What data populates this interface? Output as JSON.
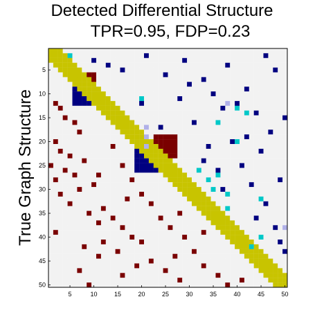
{
  "chart_data": {
    "type": "heatmap",
    "title": "Detected Differential Structure",
    "subtitle": "TPR=0.95, FDP=0.23",
    "xlabel": "",
    "ylabel": "True Graph Structure",
    "n": 50,
    "x_ticks": [
      "5",
      "10",
      "15",
      "20",
      "25",
      "30",
      "35",
      "40",
      "45",
      "50"
    ],
    "y_ticks": [
      "5",
      "10",
      "15",
      "20",
      "25",
      "30",
      "35",
      "40",
      "45",
      "50"
    ],
    "colors": {
      "background": "#f2f2f2",
      "diagonal_band": "#c8c400",
      "true_structure": "#7a0000",
      "detected_true": "#000080",
      "detected_false": "#00c8c8",
      "detected_weak": "#b0b0e8"
    },
    "diagonal_band_halfwidth": 2,
    "true_blocks": [
      [
        6,
        7,
        8,
        10
      ],
      [
        19,
        23,
        23,
        27
      ]
    ],
    "detected_blocks": [
      [
        8,
        12,
        6,
        9
      ],
      [
        22,
        26,
        19,
        23
      ]
    ],
    "true_cells": [
      [
        12,
        2
      ],
      [
        13,
        3
      ],
      [
        15,
        4
      ],
      [
        16,
        6
      ],
      [
        18,
        7
      ],
      [
        20,
        2
      ],
      [
        22,
        3
      ],
      [
        23,
        5
      ],
      [
        24,
        8
      ],
      [
        25,
        1
      ],
      [
        26,
        4
      ],
      [
        27,
        6
      ],
      [
        28,
        2
      ],
      [
        29,
        10
      ],
      [
        30,
        7
      ],
      [
        31,
        3
      ],
      [
        33,
        5
      ],
      [
        34,
        12
      ],
      [
        35,
        9
      ],
      [
        36,
        14
      ],
      [
        37,
        11
      ],
      [
        38,
        16
      ],
      [
        39,
        2
      ],
      [
        40,
        18
      ],
      [
        41,
        20
      ],
      [
        42,
        8
      ],
      [
        43,
        15
      ],
      [
        44,
        11
      ],
      [
        45,
        22
      ],
      [
        46,
        19
      ],
      [
        47,
        25
      ],
      [
        48,
        16
      ],
      [
        49,
        28
      ],
      [
        50,
        9
      ],
      [
        21,
        14
      ],
      [
        25,
        16
      ],
      [
        28,
        18
      ],
      [
        31,
        20
      ],
      [
        33,
        22
      ],
      [
        36,
        24
      ],
      [
        38,
        26
      ],
      [
        40,
        29
      ],
      [
        43,
        31
      ],
      [
        46,
        33
      ],
      [
        48,
        36
      ],
      [
        50,
        38
      ],
      [
        27,
        11
      ],
      [
        32,
        17
      ],
      [
        41,
        12
      ],
      [
        44,
        27
      ],
      [
        49,
        41
      ],
      [
        35,
        28
      ],
      [
        39,
        33
      ],
      [
        47,
        7
      ]
    ],
    "detected_true_cells": [
      [
        3,
        10
      ],
      [
        4,
        13
      ],
      [
        5,
        16
      ],
      [
        2,
        21
      ],
      [
        6,
        25
      ],
      [
        3,
        29
      ],
      [
        7,
        33
      ],
      [
        4,
        38
      ],
      [
        9,
        42
      ],
      [
        2,
        46
      ],
      [
        11,
        28
      ],
      [
        13,
        37
      ],
      [
        12,
        40
      ],
      [
        14,
        44
      ],
      [
        16,
        31
      ],
      [
        10,
        35
      ],
      [
        18,
        47
      ],
      [
        20,
        39
      ],
      [
        15,
        50
      ],
      [
        22,
        45
      ],
      [
        25,
        41
      ],
      [
        28,
        49
      ],
      [
        24,
        33
      ],
      [
        30,
        37
      ],
      [
        33,
        46
      ],
      [
        36,
        44
      ],
      [
        38,
        48
      ],
      [
        41,
        49
      ],
      [
        43,
        50
      ],
      [
        26,
        36
      ],
      [
        19,
        42
      ],
      [
        17,
        24
      ],
      [
        8,
        30
      ],
      [
        5,
        48
      ],
      [
        12,
        20
      ],
      [
        21,
        34
      ],
      [
        29,
        43
      ]
    ],
    "detected_false_cells": [
      [
        2,
        5
      ],
      [
        11,
        20
      ],
      [
        13,
        40
      ],
      [
        14,
        42
      ],
      [
        20,
        40
      ],
      [
        27,
        36
      ],
      [
        28,
        34
      ],
      [
        30,
        35
      ],
      [
        31,
        38
      ],
      [
        32,
        45
      ],
      [
        34,
        38
      ],
      [
        40,
        45
      ],
      [
        42,
        43
      ],
      [
        16,
        36
      ],
      [
        26,
        32
      ]
    ],
    "detected_weak_cells": [
      [
        12,
        38
      ],
      [
        17,
        21
      ],
      [
        19,
        21
      ],
      [
        21,
        21
      ],
      [
        38,
        50
      ]
    ]
  }
}
